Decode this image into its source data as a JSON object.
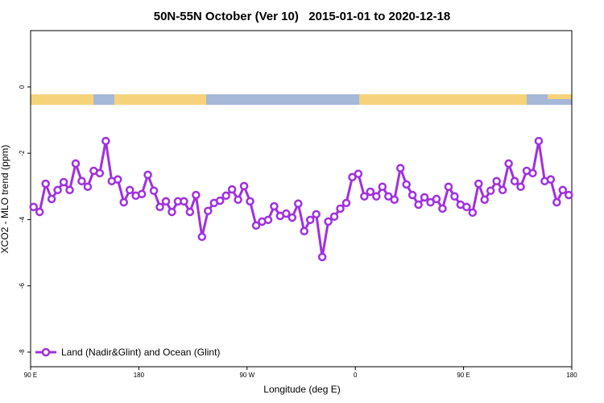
{
  "chart_data": {
    "type": "line",
    "title": "50N-55N October (Ver 10)   2015-01-01 to 2020-12-18",
    "x_label": "Longitude (deg E)",
    "y_label": "XCO2 - MLO trend (ppm)",
    "xlim": [
      90,
      540
    ],
    "xticks": [
      {
        "value": 90,
        "label": "90 E"
      },
      180,
      {
        "value": 270,
        "label": "90 W"
      },
      {
        "value": 360,
        "label": "0"
      },
      {
        "value": 450,
        "label": "90 E"
      },
      {
        "value": 540,
        "label": "180"
      }
    ],
    "ylim": [
      -8.44,
      1.7
    ],
    "yticks": [
      0,
      -2,
      -4,
      -6,
      -8
    ],
    "legend": "bottom-left",
    "series": [
      {
        "name": "Land (Nadir&Glint) and Ocean (Glint)",
        "color": "#a030e0",
        "x": [
          92.5,
          97.5,
          102.5,
          107.5,
          112.5,
          117.5,
          122.5,
          127.5,
          132.5,
          137.5,
          142.5,
          147.5,
          152.5,
          157.5,
          162.5,
          167.5,
          172.5,
          177.5,
          182.5,
          187.5,
          192.5,
          197.5,
          202.5,
          207.5,
          212.5,
          217.5,
          222.5,
          227.5,
          232.5,
          237.5,
          242.5,
          247.5,
          252.5,
          257.5,
          262.5,
          267.5,
          272.5,
          277.5,
          282.5,
          287.5,
          292.5,
          297.5,
          302.5,
          307.5,
          312.5,
          317.5,
          322.5,
          327.5,
          332.5,
          337.5,
          342.5,
          347.5,
          352.5,
          357.5,
          362.5,
          367.5,
          372.5,
          377.5,
          382.5,
          387.5,
          392.5,
          397.5,
          402.5,
          407.5,
          412.5,
          417.5,
          422.5,
          427.5,
          432.5,
          437.5,
          442.5,
          447.5,
          452.5,
          457.5,
          462.5,
          467.5,
          472.5,
          477.5,
          482.5,
          487.5,
          492.5,
          497.5,
          502.5,
          507.5,
          512.5,
          517.5,
          522.5,
          527.5,
          532.5,
          537.5
        ],
        "values": [
          -3.62,
          -3.77,
          -2.92,
          -3.38,
          -3.11,
          -2.87,
          -3.11,
          -2.31,
          -2.84,
          -3.01,
          -2.53,
          -2.6,
          -1.63,
          -2.84,
          -2.79,
          -3.48,
          -3.11,
          -3.28,
          -3.23,
          -2.65,
          -3.13,
          -3.62,
          -3.45,
          -3.77,
          -3.45,
          -3.45,
          -3.77,
          -3.26,
          -4.52,
          -3.74,
          -3.5,
          -3.43,
          -3.28,
          -3.09,
          -3.4,
          -2.99,
          -3.45,
          -4.18,
          -4.06,
          -4.01,
          -3.6,
          -3.89,
          -3.82,
          -3.94,
          -3.52,
          -4.35,
          -4.01,
          -3.84,
          -5.13,
          -4.06,
          -3.91,
          -3.67,
          -3.5,
          -2.72,
          -2.62,
          -3.3,
          -3.16,
          -3.3,
          -3.01,
          -3.3,
          -3.4,
          -2.45,
          -2.94,
          -3.26,
          -3.55,
          -3.33,
          -3.48,
          -3.38,
          -3.67,
          -3.01,
          -3.3,
          -3.55,
          -3.62,
          -3.79,
          -2.92,
          -3.4,
          -3.13,
          -2.84,
          -3.11,
          -2.31,
          -2.84,
          -3.01,
          -2.53,
          -2.6,
          -1.63,
          -2.84,
          -2.79,
          -3.48,
          -3.11,
          -3.26
        ]
      }
    ]
  }
}
